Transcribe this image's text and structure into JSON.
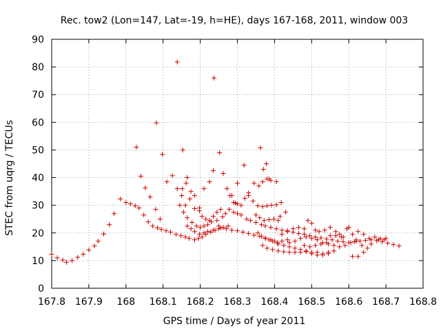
{
  "chart_data": {
    "type": "scatter",
    "title": "Rec. tow2 (Lon=147, Lat=-19, h=HE), days 167-168, 2011, window 003",
    "xlabel": "GPS time / Days of year 2011",
    "ylabel": "STEC from uqrg / TECUs",
    "xlim": [
      167.8,
      168.8
    ],
    "ylim": [
      0,
      90
    ],
    "xticks": [
      "167.8",
      "167.9",
      "168",
      "168.1",
      "168.2",
      "168.3",
      "168.4",
      "168.5",
      "168.6",
      "168.7",
      "168.8"
    ],
    "yticks": [
      "0",
      "10",
      "20",
      "30",
      "40",
      "50",
      "60",
      "70",
      "80",
      "90"
    ],
    "grid": true,
    "marker": "+",
    "color": "#cc0000",
    "series": [
      {
        "points": [
          [
            167.8,
            12.3
          ],
          [
            167.815,
            11.0
          ],
          [
            167.83,
            10.2
          ],
          [
            167.84,
            9.4
          ],
          [
            167.855,
            10.0
          ],
          [
            167.87,
            11.2
          ],
          [
            167.885,
            12.3
          ],
          [
            167.9,
            13.8
          ],
          [
            167.915,
            15.3
          ],
          [
            167.925,
            17.0
          ],
          [
            167.94,
            19.6
          ],
          [
            167.955,
            23.0
          ],
          [
            167.968,
            27.0
          ],
          [
            167.985,
            32.3
          ],
          [
            168.0,
            31.0
          ],
          [
            168.012,
            30.5
          ],
          [
            168.025,
            29.8
          ],
          [
            168.035,
            29.0
          ],
          [
            168.048,
            26.5
          ],
          [
            168.06,
            24.0
          ],
          [
            168.072,
            22.5
          ],
          [
            168.085,
            21.8
          ],
          [
            168.095,
            21.3
          ],
          [
            168.108,
            20.8
          ],
          [
            168.12,
            20.3
          ],
          [
            168.135,
            19.5
          ],
          [
            168.148,
            19.0
          ],
          [
            168.16,
            18.5
          ],
          [
            168.17,
            18.0
          ],
          [
            168.185,
            17.5
          ],
          [
            168.195,
            18.0
          ],
          [
            168.028,
            51.0
          ],
          [
            168.04,
            40.5
          ],
          [
            168.052,
            36.3
          ],
          [
            168.065,
            33.0
          ],
          [
            168.08,
            28.5
          ],
          [
            168.092,
            25.0
          ],
          [
            168.082,
            59.8
          ],
          [
            168.098,
            48.4
          ],
          [
            168.11,
            38.5
          ],
          [
            168.125,
            40.7
          ],
          [
            168.138,
            36.0
          ],
          [
            168.152,
            36.0
          ],
          [
            168.138,
            81.8
          ],
          [
            168.153,
            50.0
          ],
          [
            168.162,
            38.0
          ],
          [
            168.165,
            40.0
          ],
          [
            168.175,
            35.0
          ],
          [
            168.185,
            33.5
          ],
          [
            168.198,
            29.0
          ],
          [
            168.21,
            36.0
          ],
          [
            168.225,
            38.5
          ],
          [
            168.235,
            42.5
          ],
          [
            168.237,
            76.0
          ],
          [
            168.252,
            49.0
          ],
          [
            168.262,
            41.5
          ],
          [
            168.272,
            36.0
          ],
          [
            168.285,
            33.5
          ],
          [
            168.295,
            30.8
          ],
          [
            168.15,
            33.5
          ],
          [
            168.16,
            30.0
          ],
          [
            168.172,
            32.3
          ],
          [
            168.185,
            28.8
          ],
          [
            168.198,
            28.0
          ],
          [
            168.205,
            26.0
          ],
          [
            168.215,
            25.0
          ],
          [
            168.225,
            24.5
          ],
          [
            168.235,
            26.0
          ],
          [
            168.245,
            27.5
          ],
          [
            168.255,
            28.5
          ],
          [
            168.145,
            30.0
          ],
          [
            168.155,
            27.5
          ],
          [
            168.165,
            25.5
          ],
          [
            168.178,
            23.8
          ],
          [
            168.19,
            22.5
          ],
          [
            168.2,
            22.0
          ],
          [
            168.21,
            22.5
          ],
          [
            168.22,
            23.0
          ],
          [
            168.23,
            24.0
          ],
          [
            168.245,
            24.5
          ],
          [
            168.26,
            25.8
          ],
          [
            168.165,
            22.5
          ],
          [
            168.175,
            21.5
          ],
          [
            168.185,
            20.5
          ],
          [
            168.198,
            19.5
          ],
          [
            168.21,
            20.0
          ],
          [
            168.22,
            20.5
          ],
          [
            168.235,
            21.0
          ],
          [
            168.25,
            21.5
          ],
          [
            168.262,
            22.0
          ],
          [
            168.275,
            22.5
          ],
          [
            168.205,
            18.5
          ],
          [
            168.215,
            19.5
          ],
          [
            168.228,
            20.3
          ],
          [
            168.24,
            21.0
          ],
          [
            168.255,
            21.8
          ],
          [
            168.25,
            22.5
          ],
          [
            168.27,
            21.5
          ],
          [
            168.285,
            21.0
          ],
          [
            168.3,
            20.8
          ],
          [
            168.315,
            20.3
          ],
          [
            168.33,
            19.8
          ],
          [
            168.345,
            19.2
          ],
          [
            168.36,
            18.8
          ],
          [
            168.375,
            18.2
          ],
          [
            168.39,
            17.5
          ],
          [
            168.4,
            17.0
          ],
          [
            168.41,
            16.0
          ],
          [
            168.425,
            15.5
          ],
          [
            168.44,
            15.0
          ],
          [
            168.455,
            14.5
          ],
          [
            168.47,
            14.0
          ],
          [
            168.485,
            13.5
          ],
          [
            168.5,
            13.0
          ],
          [
            168.515,
            13.0
          ],
          [
            168.53,
            12.5
          ],
          [
            168.545,
            13.0
          ],
          [
            168.56,
            13.5
          ],
          [
            168.268,
            27.0
          ],
          [
            168.278,
            28.5
          ],
          [
            168.29,
            27.5
          ],
          [
            168.3,
            27.0
          ],
          [
            168.31,
            26.5
          ],
          [
            168.325,
            25.0
          ],
          [
            168.335,
            24.5
          ],
          [
            168.35,
            23.8
          ],
          [
            168.365,
            23.0
          ],
          [
            168.375,
            22.5
          ],
          [
            168.39,
            22.0
          ],
          [
            168.405,
            21.5
          ],
          [
            168.42,
            21.0
          ],
          [
            168.435,
            20.8
          ],
          [
            168.45,
            20.3
          ],
          [
            168.465,
            19.8
          ],
          [
            168.48,
            19.5
          ],
          [
            168.495,
            19.0
          ],
          [
            168.51,
            18.5
          ],
          [
            168.525,
            18.2
          ],
          [
            168.54,
            17.8
          ],
          [
            168.555,
            17.5
          ],
          [
            168.57,
            17.0
          ],
          [
            168.585,
            16.8
          ],
          [
            168.6,
            16.5
          ],
          [
            168.615,
            16.8
          ],
          [
            168.63,
            17.0
          ],
          [
            168.645,
            17.3
          ],
          [
            168.66,
            17.5
          ],
          [
            168.675,
            17.2
          ],
          [
            168.69,
            16.8
          ],
          [
            168.705,
            16.3
          ],
          [
            168.72,
            15.8
          ],
          [
            168.735,
            15.3
          ],
          [
            168.28,
            33.5
          ],
          [
            168.29,
            31.0
          ],
          [
            168.3,
            30.5
          ],
          [
            168.31,
            30.0
          ],
          [
            168.32,
            32.5
          ],
          [
            168.33,
            33.5
          ],
          [
            168.345,
            38.0
          ],
          [
            168.358,
            37.0
          ],
          [
            168.368,
            38.5
          ],
          [
            168.38,
            39.5
          ],
          [
            168.39,
            39.0
          ],
          [
            168.405,
            38.5
          ],
          [
            168.3,
            38.0
          ],
          [
            168.318,
            44.5
          ],
          [
            168.33,
            34.5
          ],
          [
            168.342,
            31.5
          ],
          [
            168.355,
            29.8
          ],
          [
            168.368,
            29.5
          ],
          [
            168.38,
            29.8
          ],
          [
            168.392,
            30.0
          ],
          [
            168.405,
            30.2
          ],
          [
            168.418,
            31.0
          ],
          [
            168.362,
            50.8
          ],
          [
            168.37,
            43.0
          ],
          [
            168.378,
            45.0
          ],
          [
            168.385,
            39.5
          ],
          [
            168.35,
            26.5
          ],
          [
            168.36,
            25.5
          ],
          [
            168.372,
            24.5
          ],
          [
            168.385,
            24.8
          ],
          [
            168.398,
            25.0
          ],
          [
            168.41,
            24.5
          ],
          [
            168.415,
            26.0
          ],
          [
            168.43,
            27.5
          ],
          [
            168.355,
            20.0
          ],
          [
            168.365,
            18.8
          ],
          [
            168.375,
            18.0
          ],
          [
            168.385,
            17.5
          ],
          [
            168.395,
            17.0
          ],
          [
            168.408,
            16.5
          ],
          [
            168.42,
            17.0
          ],
          [
            168.435,
            17.5
          ],
          [
            168.368,
            15.5
          ],
          [
            168.38,
            14.5
          ],
          [
            168.395,
            14.0
          ],
          [
            168.41,
            13.5
          ],
          [
            168.425,
            13.2
          ],
          [
            168.44,
            13.0
          ],
          [
            168.455,
            13.0
          ],
          [
            168.47,
            13.0
          ],
          [
            168.485,
            13.2
          ],
          [
            168.5,
            12.5
          ],
          [
            168.515,
            12.0
          ],
          [
            168.53,
            12.0
          ],
          [
            168.545,
            12.5
          ],
          [
            168.42,
            19.5
          ],
          [
            168.435,
            20.5
          ],
          [
            168.45,
            21.5
          ],
          [
            168.465,
            22.0
          ],
          [
            168.48,
            21.5
          ],
          [
            168.49,
            24.5
          ],
          [
            168.5,
            23.5
          ],
          [
            168.51,
            21.0
          ],
          [
            168.52,
            20.5
          ],
          [
            168.535,
            21.0
          ],
          [
            168.55,
            22.0
          ],
          [
            168.565,
            20.5
          ],
          [
            168.575,
            19.5
          ],
          [
            168.585,
            18.5
          ],
          [
            168.595,
            21.5
          ],
          [
            168.61,
            19.5
          ],
          [
            168.625,
            20.5
          ],
          [
            168.64,
            19.5
          ],
          [
            168.655,
            18.0
          ],
          [
            168.67,
            18.5
          ],
          [
            168.685,
            18.0
          ],
          [
            168.695,
            17.5
          ],
          [
            168.44,
            16.5
          ],
          [
            168.455,
            17.0
          ],
          [
            168.47,
            18.0
          ],
          [
            168.485,
            18.5
          ],
          [
            168.5,
            18.0
          ],
          [
            168.515,
            17.5
          ],
          [
            168.53,
            16.5
          ],
          [
            168.545,
            16.0
          ],
          [
            168.56,
            15.5
          ],
          [
            168.575,
            15.0
          ],
          [
            168.59,
            15.5
          ],
          [
            168.605,
            16.5
          ],
          [
            168.62,
            17.0
          ],
          [
            168.635,
            15.5
          ],
          [
            168.65,
            14.5
          ],
          [
            168.48,
            15.5
          ],
          [
            168.495,
            15.0
          ],
          [
            168.51,
            15.5
          ],
          [
            168.525,
            16.0
          ],
          [
            168.54,
            16.5
          ],
          [
            168.55,
            19.0
          ],
          [
            168.565,
            19.0
          ],
          [
            168.58,
            18.5
          ],
          [
            168.6,
            22.0
          ],
          [
            168.62,
            17.5
          ],
          [
            168.61,
            11.5
          ],
          [
            168.625,
            11.5
          ],
          [
            168.64,
            13.0
          ],
          [
            168.66,
            16.0
          ],
          [
            168.68,
            17.5
          ],
          [
            168.7,
            18.0
          ]
        ]
      }
    ]
  }
}
